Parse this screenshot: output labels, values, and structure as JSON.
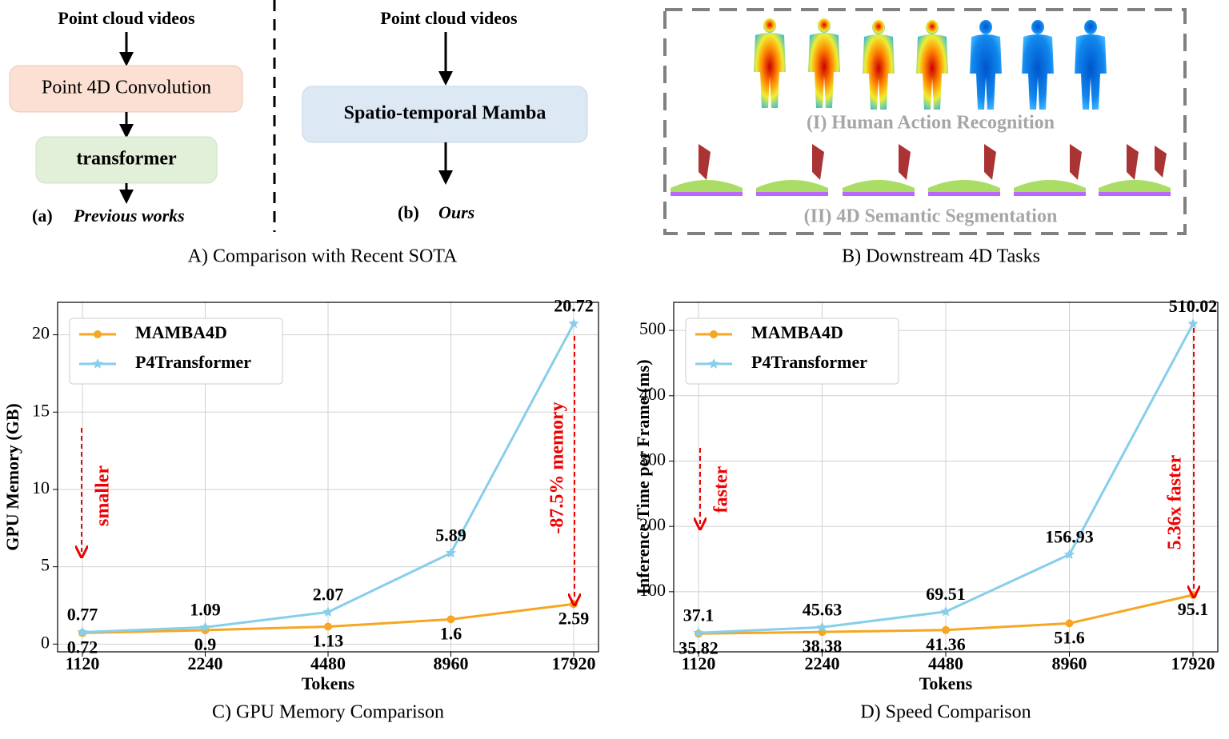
{
  "diagram": {
    "left": {
      "input": "Point cloud videos",
      "step1": "Point 4D Convolution",
      "step2": "transformer",
      "tag": "(a)",
      "label": "Previous works"
    },
    "right": {
      "input": "Point cloud videos",
      "step1": "Spatio-temporal Mamba",
      "tag": "(b)",
      "label": "Ours"
    },
    "caption": "A) Comparison with Recent SOTA",
    "tasks": {
      "task1": "(I) Human Action Recognition",
      "task2": "(II) 4D Semantic Segmentation",
      "caption": "B) Downstream 4D Tasks"
    }
  },
  "chart_data": [
    {
      "type": "line",
      "title": "C) GPU Memory Comparison",
      "x_label": "Tokens",
      "y_label": "GPU Memory (GB)",
      "categories": [
        "1120",
        "2240",
        "4480",
        "8960",
        "17920"
      ],
      "series": [
        {
          "name": "MAMBA4D",
          "color": "#f5a623",
          "marker": "circle",
          "values": [
            0.72,
            0.9,
            1.13,
            1.6,
            2.59
          ]
        },
        {
          "name": "P4Transformer",
          "color": "#87ceeb",
          "marker": "star",
          "values": [
            0.77,
            1.09,
            2.07,
            5.89,
            20.72
          ]
        }
      ],
      "ylim": [
        -0.5,
        22.1
      ],
      "yticks": [
        0,
        5,
        10,
        15,
        20
      ],
      "grid": true,
      "legend": "upper left",
      "annotations": [
        "smaller",
        "-87.5% memory"
      ]
    },
    {
      "type": "line",
      "title": "D) Speed Comparison",
      "x_label": "Tokens",
      "y_label": "Inference Time per Frame (ms)",
      "categories": [
        "1120",
        "2240",
        "4480",
        "8960",
        "17920"
      ],
      "series": [
        {
          "name": "MAMBA4D",
          "color": "#f5a623",
          "marker": "circle",
          "values": [
            35.82,
            38.38,
            41.36,
            51.6,
            95.1
          ]
        },
        {
          "name": "P4Transformer",
          "color": "#87ceeb",
          "marker": "star",
          "values": [
            37.1,
            45.63,
            69.51,
            156.93,
            510.02
          ]
        }
      ],
      "ylim": [
        8,
        543
      ],
      "yticks": [
        100,
        200,
        300,
        400,
        500
      ],
      "grid": true,
      "legend": "upper left",
      "annotations": [
        "faster",
        "5.36x faster"
      ]
    }
  ]
}
